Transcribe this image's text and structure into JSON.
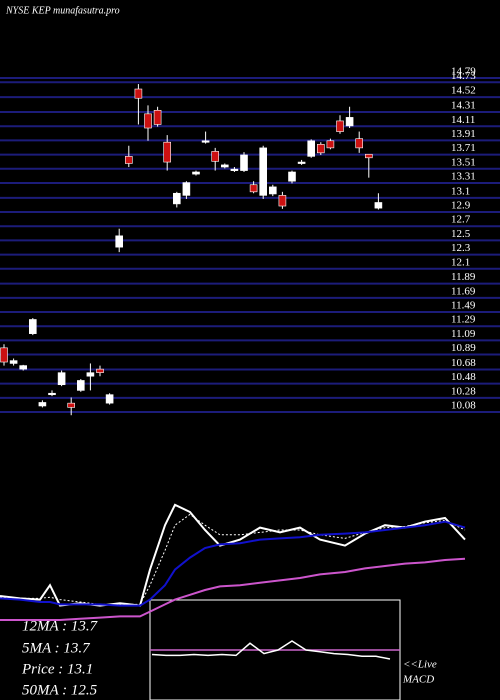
{
  "chart_data": {
    "type": "candlestick",
    "title": "NYSE KEP munafasutra.pro",
    "ylim": [
      10.08,
      14.79
    ],
    "yticks": [
      14.79,
      14.73,
      14.52,
      14.31,
      14.11,
      13.91,
      13.71,
      13.51,
      13.31,
      13.1,
      12.9,
      12.7,
      12.5,
      12.3,
      12.1,
      11.89,
      11.69,
      11.49,
      11.29,
      11.09,
      10.89,
      10.68,
      10.48,
      10.28,
      10.08
    ],
    "grid": true,
    "grid_color": "#1c1c7a",
    "up_color": "#ffffff",
    "down_color": "#cc1111",
    "open": [
      10.9,
      10.68,
      10.6,
      11.1,
      10.08,
      10.25,
      10.38,
      10.12,
      10.3,
      10.5,
      10.6,
      10.12,
      12.32,
      13.6,
      14.55,
      14.2,
      14.25,
      13.8,
      12.93,
      13.05,
      13.35,
      13.8,
      13.67,
      13.45,
      13.4,
      13.4,
      13.2,
      13.05,
      13.07,
      13.05,
      13.25,
      13.5,
      13.6,
      13.77,
      13.82,
      14.1,
      14.03,
      13.85,
      13.63,
      12.87
    ],
    "high": [
      10.95,
      10.75,
      10.66,
      11.32,
      10.16,
      10.3,
      10.58,
      10.2,
      10.46,
      10.68,
      10.65,
      10.26,
      12.58,
      13.75,
      14.62,
      14.32,
      14.3,
      13.9,
      13.1,
      13.25,
      13.4,
      13.95,
      13.72,
      13.5,
      13.45,
      13.66,
      13.25,
      13.75,
      13.2,
      13.1,
      13.4,
      13.55,
      13.84,
      13.8,
      13.85,
      14.18,
      14.3,
      13.95,
      13.63,
      13.08
    ],
    "low": [
      10.65,
      10.65,
      10.58,
      11.08,
      10.06,
      10.22,
      10.36,
      9.95,
      10.28,
      10.3,
      10.5,
      10.1,
      12.25,
      13.45,
      14.05,
      13.82,
      14.02,
      13.4,
      12.88,
      13.0,
      13.33,
      13.78,
      13.4,
      13.43,
      13.38,
      13.38,
      13.08,
      13.0,
      13.04,
      12.86,
      13.22,
      13.48,
      13.58,
      13.62,
      13.7,
      13.92,
      14.0,
      13.65,
      13.3,
      12.85
    ],
    "close": [
      10.7,
      10.72,
      10.65,
      11.3,
      10.13,
      10.26,
      10.55,
      10.06,
      10.44,
      10.55,
      10.55,
      10.24,
      12.48,
      13.5,
      14.42,
      14.0,
      14.05,
      13.52,
      13.08,
      13.23,
      13.38,
      13.82,
      13.53,
      13.48,
      13.42,
      13.62,
      13.1,
      13.72,
      13.17,
      12.9,
      13.38,
      13.52,
      13.82,
      13.65,
      13.72,
      13.95,
      14.15,
      13.72,
      13.58,
      12.95
    ],
    "lower_panel": {
      "x": [
        0,
        20,
        40,
        50,
        60,
        80,
        100,
        120,
        140,
        150,
        165,
        175,
        190,
        205,
        220,
        240,
        260,
        280,
        300,
        320,
        345,
        365,
        385,
        405,
        425,
        445,
        465
      ],
      "ylim": [
        0,
        100
      ],
      "series": [
        {
          "name": "Price",
          "color": "#ffffff",
          "values": [
            20,
            18,
            17,
            29,
            12,
            14,
            12,
            14,
            12,
            42,
            79,
            96,
            90,
            75,
            62,
            67,
            77,
            73,
            77,
            67,
            62,
            72,
            79,
            77,
            82,
            85,
            67
          ]
        },
        {
          "name": "5MA",
          "color": "#ffffff",
          "dashed": true,
          "values": [
            19,
            18,
            18,
            19,
            17,
            15,
            13,
            13,
            13,
            29,
            58,
            79,
            88,
            79,
            71,
            71,
            73,
            75,
            75,
            71,
            68,
            73,
            77,
            78,
            81,
            83,
            75
          ]
        },
        {
          "name": "12MA",
          "color": "#1111cc",
          "values": [
            18,
            17,
            15,
            15,
            13,
            13,
            13,
            12,
            12,
            17,
            29,
            42,
            52,
            60,
            63,
            64,
            67,
            68,
            69,
            71,
            72,
            73,
            75,
            77,
            79,
            82,
            77
          ]
        },
        {
          "name": "50MA",
          "color": "#cc55cc",
          "values": [
            0,
            0,
            0,
            0,
            0,
            1,
            2,
            3,
            3,
            7,
            13,
            17,
            21,
            25,
            28,
            29,
            31,
            33,
            35,
            38,
            40,
            43,
            45,
            47,
            48,
            50,
            51
          ]
        }
      ]
    },
    "macd": {
      "color": "#ffffff",
      "signal_color": "#cc66cc",
      "ylim": [
        -10,
        10
      ],
      "signal": 0,
      "values": [
        -1,
        -1.2,
        -1.2,
        -1,
        -1.2,
        -1,
        -1.2,
        1.5,
        -0.8,
        0,
        2,
        0,
        -0.4,
        -0.8,
        -1,
        -1.4,
        -1.4,
        -2
      ]
    },
    "legend": [
      "12MA : 13.7",
      "5MA : 13.7",
      "Price   : 13.1",
      "50MA : 12.5"
    ],
    "live_label": "<<Live",
    "macd_label": "MACD"
  }
}
